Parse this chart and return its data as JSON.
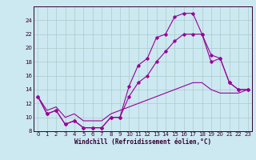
{
  "xlabel": "Windchill (Refroidissement éolien,°C)",
  "background_color": "#cce8f0",
  "line_color": "#990099",
  "xlim": [
    -0.5,
    23.5
  ],
  "ylim": [
    8,
    26
  ],
  "xticks": [
    0,
    1,
    2,
    3,
    4,
    5,
    6,
    7,
    8,
    9,
    10,
    11,
    12,
    13,
    14,
    15,
    16,
    17,
    18,
    19,
    20,
    21,
    22,
    23
  ],
  "yticks": [
    8,
    10,
    12,
    14,
    16,
    18,
    20,
    22,
    24
  ],
  "line1_x": [
    0,
    1,
    2,
    3,
    4,
    5,
    6,
    7,
    8,
    9,
    10,
    11,
    12,
    13,
    14,
    15,
    16,
    17,
    18,
    19,
    20,
    21,
    22,
    23
  ],
  "line1_y": [
    13,
    10.5,
    11,
    9,
    9.5,
    8.5,
    8.5,
    8.5,
    10,
    10,
    14.5,
    17.5,
    18.5,
    21.5,
    22,
    24.5,
    25,
    25,
    22,
    19,
    18.5,
    15,
    14,
    14
  ],
  "line2_x": [
    0,
    1,
    2,
    3,
    4,
    5,
    6,
    7,
    8,
    9,
    10,
    11,
    12,
    13,
    14,
    15,
    16,
    17,
    18,
    19,
    20,
    21,
    22,
    23
  ],
  "line2_y": [
    13,
    10.5,
    11,
    9,
    9.5,
    8.5,
    8.5,
    8.5,
    10,
    10,
    13,
    15,
    16,
    18,
    19.5,
    21,
    22,
    22,
    22,
    18,
    18.5,
    15,
    14,
    14
  ],
  "line3_x": [
    0,
    1,
    2,
    3,
    4,
    5,
    6,
    7,
    8,
    9,
    10,
    11,
    12,
    13,
    14,
    15,
    16,
    17,
    18,
    19,
    20,
    21,
    22,
    23
  ],
  "line3_y": [
    13,
    11,
    11.5,
    10,
    10.5,
    9.5,
    9.5,
    9.5,
    10.5,
    11,
    11.5,
    12,
    12.5,
    13,
    13.5,
    14,
    14.5,
    15,
    15,
    14,
    13.5,
    13.5,
    13.5,
    14
  ]
}
